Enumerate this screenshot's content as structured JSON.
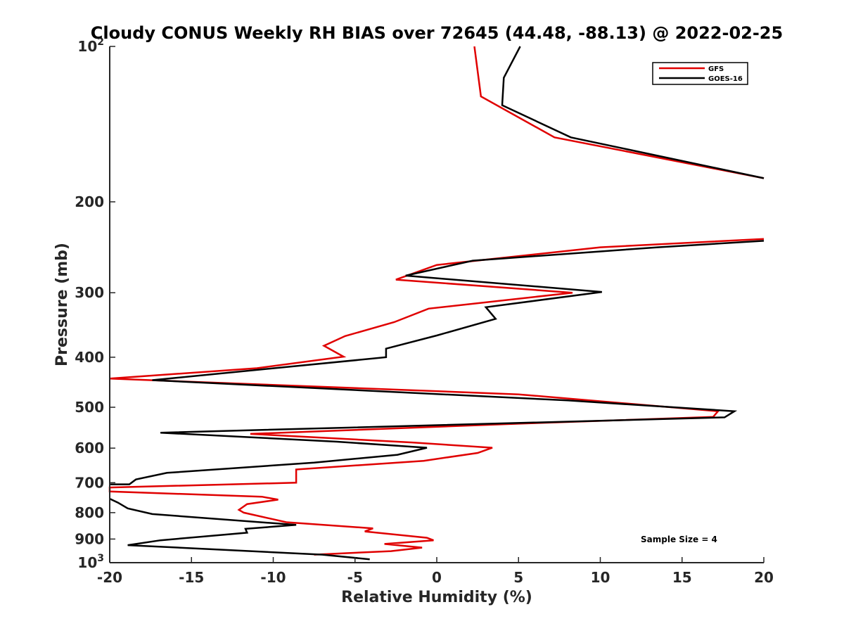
{
  "chart_data": {
    "type": "line",
    "title": "Cloudy CONUS Weekly RH BIAS over 72645 (44.48, -88.13) @ 2022-02-25",
    "xlabel": "Relative Humidity (%)",
    "ylabel": "Pressure (mb)",
    "xlim": [
      -20,
      20
    ],
    "ylim": [
      100,
      1000
    ],
    "yscale": "log",
    "y_reversed": true,
    "grid": false,
    "legend_position": "top-right",
    "x_ticks": [
      "-20",
      "-15",
      "-10",
      "-5",
      "0",
      "5",
      "10",
      "15",
      "20"
    ],
    "y_ticks": [
      {
        "value": 100,
        "base": "10",
        "exp": "2"
      },
      {
        "value": 200,
        "label": "200"
      },
      {
        "value": 300,
        "label": "300"
      },
      {
        "value": 400,
        "label": "400"
      },
      {
        "value": 500,
        "label": "500"
      },
      {
        "value": 600,
        "label": "600"
      },
      {
        "value": 700,
        "label": "700"
      },
      {
        "value": 800,
        "label": "800"
      },
      {
        "value": 900,
        "label": "900"
      },
      {
        "value": 1000,
        "base": "10",
        "exp": "3"
      }
    ],
    "annotation": "Sample Size = 4",
    "series": [
      {
        "name": "GFS",
        "color": "#e00000",
        "points": [
          [
            2.3,
            100
          ],
          [
            2.7,
            125
          ],
          [
            7.2,
            150
          ],
          [
            20,
            180
          ],
          [
            null,
            210
          ],
          [
            20,
            236
          ],
          [
            10,
            245
          ],
          [
            0,
            265
          ],
          [
            -2.5,
            283
          ],
          [
            8.3,
            300
          ],
          [
            -0.5,
            322
          ],
          [
            -2.6,
            342
          ],
          [
            -5.6,
            364
          ],
          [
            -6.9,
            380
          ],
          [
            -5.7,
            399
          ],
          [
            -11,
            420
          ],
          [
            -20,
            440
          ],
          [
            5,
            472
          ],
          [
            17.2,
            509
          ],
          [
            16.9,
            522
          ],
          [
            5,
            538
          ],
          [
            -11.4,
            563
          ],
          [
            -1.5,
            585
          ],
          [
            3.4,
            599
          ],
          [
            2.5,
            613
          ],
          [
            -0.8,
            635
          ],
          [
            -8.6,
            660
          ],
          [
            -8.6,
            700
          ],
          [
            -20,
            715
          ],
          [
            -20,
            728
          ],
          [
            -10.7,
            745
          ],
          [
            -9.7,
            755
          ],
          [
            -11.6,
            770
          ],
          [
            -12.1,
            790
          ],
          [
            -11.8,
            800
          ],
          [
            -9.2,
            835
          ],
          [
            -3.9,
            858
          ],
          [
            -4.4,
            870
          ],
          [
            -0.6,
            895
          ],
          [
            -0.2,
            905
          ],
          [
            -3.2,
            920
          ],
          [
            -0.9,
            935
          ],
          [
            -2.8,
            950
          ],
          [
            -7.5,
            965
          ]
        ]
      },
      {
        "name": "GOES-16",
        "color": "#000000",
        "points": [
          [
            5.1,
            100
          ],
          [
            4.1,
            115
          ],
          [
            4.0,
            130
          ],
          [
            8.2,
            150
          ],
          [
            20,
            180
          ],
          [
            null,
            210
          ],
          [
            20,
            238
          ],
          [
            13.5,
            245
          ],
          [
            2.2,
            260
          ],
          [
            -1.9,
            278
          ],
          [
            10.1,
            299
          ],
          [
            3,
            320
          ],
          [
            3.6,
            337
          ],
          [
            0,
            363
          ],
          [
            -3.1,
            385
          ],
          [
            -3.1,
            400
          ],
          [
            -17.4,
            443
          ],
          [
            8,
            485
          ],
          [
            18.2,
            509
          ],
          [
            17.6,
            523
          ],
          [
            -16.9,
            560
          ],
          [
            -6.1,
            583
          ],
          [
            -0.6,
            599
          ],
          [
            -2.4,
            618
          ],
          [
            -7.5,
            640
          ],
          [
            -16.5,
            670
          ],
          [
            -18.4,
            690
          ],
          [
            -18.8,
            705
          ],
          [
            -20,
            705
          ],
          [
            null,
            740
          ],
          [
            -20,
            752
          ],
          [
            -19.5,
            765
          ],
          [
            -18.9,
            785
          ],
          [
            -17.4,
            805
          ],
          [
            -8.6,
            845
          ],
          [
            -11.7,
            860
          ],
          [
            -11.6,
            875
          ],
          [
            -16.9,
            905
          ],
          [
            -18.9,
            925
          ],
          [
            -12.8,
            945
          ],
          [
            -7,
            965
          ],
          [
            -4.1,
            985
          ]
        ]
      }
    ]
  }
}
